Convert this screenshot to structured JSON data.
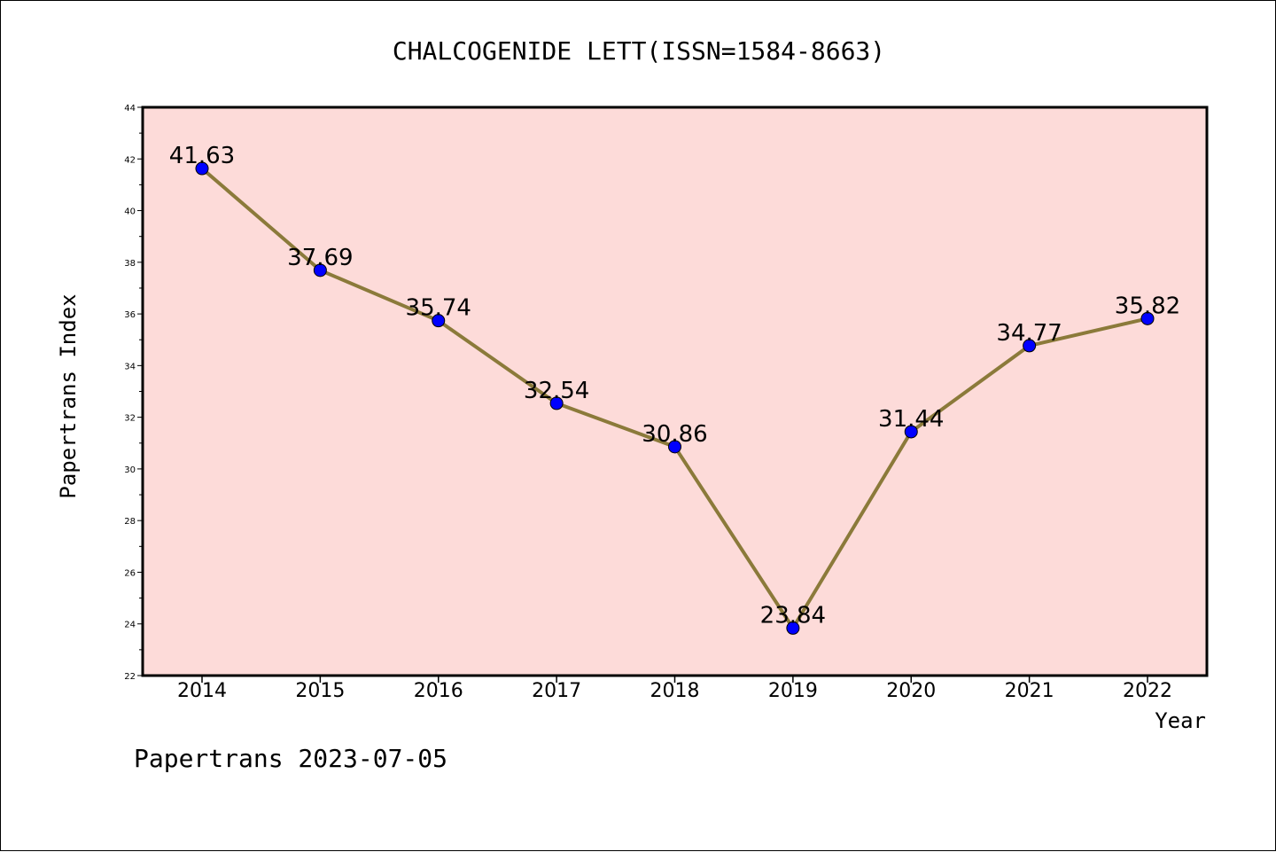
{
  "footer": "Papertrans 2023-07-05",
  "chart_data": {
    "type": "line",
    "title": "CHALCOGENIDE LETT(ISSN=1584-8663)",
    "xlabel": "Year",
    "ylabel": "Papertrans Index",
    "x": [
      "2014",
      "2015",
      "2016",
      "2017",
      "2018",
      "2019",
      "2020",
      "2021",
      "2022"
    ],
    "values": [
      41.63,
      37.69,
      35.74,
      32.54,
      30.86,
      23.84,
      31.44,
      34.77,
      35.82
    ],
    "data_labels": [
      "41.63",
      "37.69",
      "35.74",
      "32.54",
      "30.86",
      "23.84",
      "31.44",
      "34.77",
      "35.82"
    ],
    "ylim": [
      22,
      44
    ],
    "yticks": [
      22,
      24,
      26,
      28,
      30,
      32,
      34,
      36,
      38,
      40,
      42,
      44
    ],
    "grid": false,
    "colors": {
      "plot_background": "#fddbd9",
      "line": "#8b7a3a",
      "marker": "#0000ff"
    }
  }
}
